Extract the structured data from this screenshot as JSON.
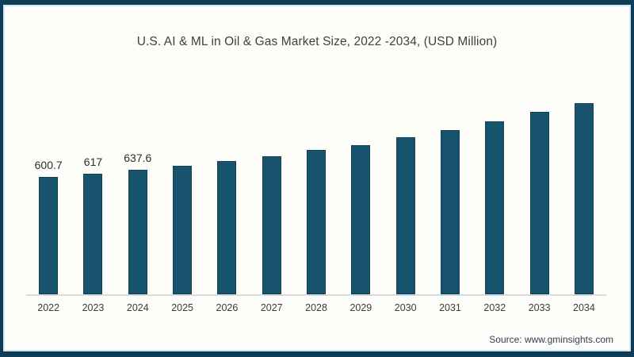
{
  "chart_data": {
    "type": "bar",
    "title": "U.S. AI & ML in Oil & Gas Market Size, 2022 -2034, (USD Million)",
    "categories": [
      "2022",
      "2023",
      "2024",
      "2025",
      "2026",
      "2027",
      "2028",
      "2029",
      "2030",
      "2031",
      "2032",
      "2033",
      "2034"
    ],
    "values": [
      600.7,
      617,
      637.6,
      657,
      681,
      707,
      738,
      764,
      804,
      841,
      885,
      934,
      979
    ],
    "data_labels": [
      "600.7",
      "617",
      "637.6",
      "",
      "",
      "",
      "",
      "",
      "",
      "",
      "",
      "",
      ""
    ],
    "xlabel": "",
    "ylabel": "",
    "unit": "USD Million",
    "ylim": [
      0,
      1000
    ],
    "grid": false,
    "legend_position": "none",
    "bar_color": "#17536c",
    "axis_line_color": "#dcdcdc",
    "frame_border_color": "#0f3d57",
    "frame_inner_line_color": "#cde8f2"
  },
  "footer": {
    "source_label": "Source: www.gminsights.com"
  }
}
